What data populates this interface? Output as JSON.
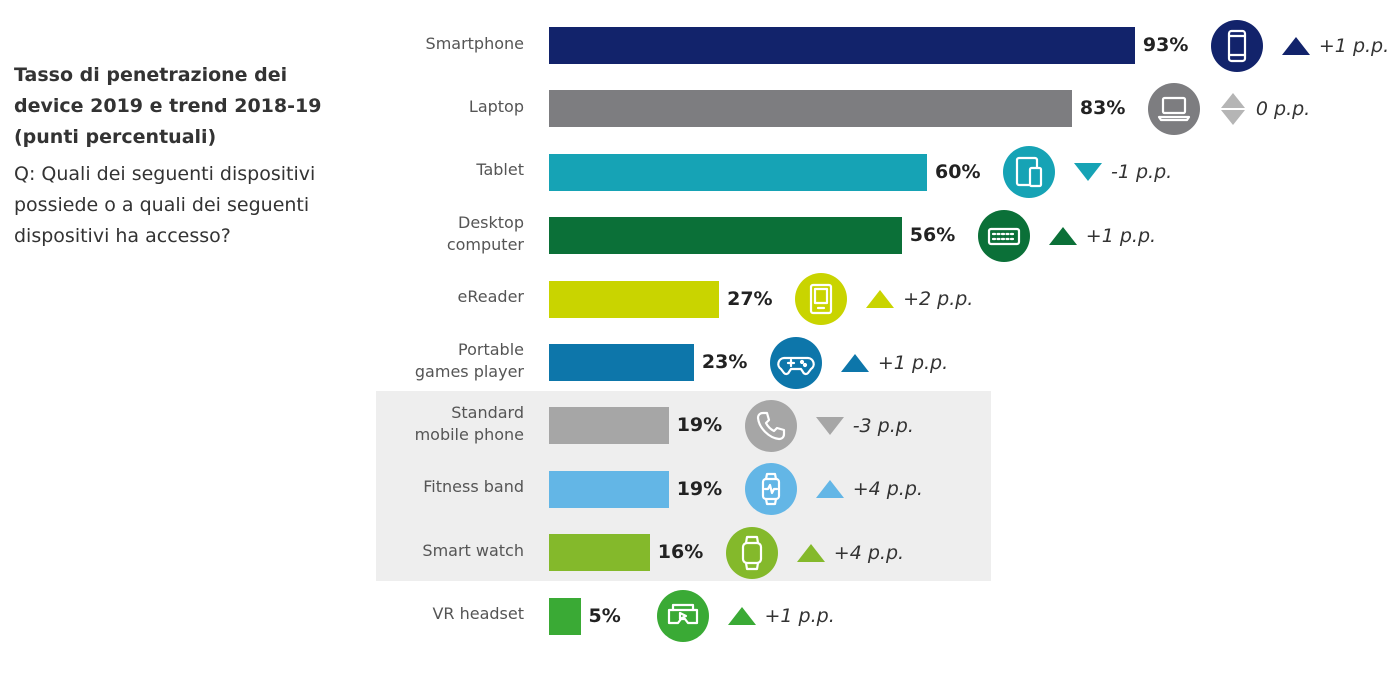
{
  "title": "Tasso di penetrazione dei device 2019 e trend 2018-19 (punti percentuali)",
  "question": "Q: Quali dei seguenti dispositivi possiede o a quali dei seguenti dispositivi ha accesso?",
  "chart_data": {
    "type": "bar",
    "orientation": "horizontal",
    "unit": "%",
    "xlim": [
      0,
      100
    ],
    "grid": false,
    "highlighted_categories": [
      "Standard mobile phone",
      "Fitness band",
      "Smart watch"
    ],
    "categories": [
      "Smartphone",
      "Laptop",
      "Tablet",
      "Desktop computer",
      "eReader",
      "Portable games player",
      "Standard mobile phone",
      "Fitness band",
      "Smart watch",
      "VR headset"
    ],
    "label_lines": [
      [
        "Smartphone"
      ],
      [
        "Laptop"
      ],
      [
        "Tablet"
      ],
      [
        "Desktop",
        "computer"
      ],
      [
        "eReader"
      ],
      [
        "Portable",
        "games player"
      ],
      [
        "Standard",
        "mobile phone"
      ],
      [
        "Fitness band"
      ],
      [
        "Smart watch"
      ],
      [
        "VR headset"
      ]
    ],
    "values": [
      93,
      83,
      60,
      56,
      27,
      23,
      19,
      19,
      16,
      5
    ],
    "value_labels": [
      "93%",
      "83%",
      "60%",
      "56%",
      "27%",
      "23%",
      "19%",
      "19%",
      "16%",
      "5%"
    ],
    "trend": [
      1,
      0,
      -1,
      1,
      2,
      1,
      -3,
      4,
      4,
      1
    ],
    "trend_labels": [
      "+1 p.p.",
      "0 p.p.",
      "-1 p.p.",
      "+1 p.p.",
      "+2 p.p.",
      "+1 p.p.",
      "-3 p.p.",
      "+4 p.p.",
      "+4 p.p.",
      "+1 p.p."
    ],
    "trend_direction": [
      "up",
      "flat",
      "down",
      "up",
      "up",
      "up",
      "down",
      "up",
      "up",
      "up"
    ],
    "icons": [
      "smartphone-icon",
      "laptop-icon",
      "tablet-icon",
      "keyboard-icon",
      "ereader-icon",
      "gamepad-icon",
      "phone-handset-icon",
      "fitness-band-icon",
      "smartwatch-icon",
      "vr-headset-icon"
    ],
    "colors": [
      "#12236b",
      "#7d7d80",
      "#16a3b5",
      "#0b7038",
      "#c9d400",
      "#0d76aa",
      "#a6a6a6",
      "#63b6e6",
      "#84b92b",
      "#3aaa35"
    ],
    "trend_colors": [
      "#12236b",
      "#b5b5b5",
      "#16a3b5",
      "#0b7038",
      "#c9d400",
      "#0d76aa",
      "#a6a6a6",
      "#63b6e6",
      "#84b92b",
      "#3aaa35"
    ]
  }
}
